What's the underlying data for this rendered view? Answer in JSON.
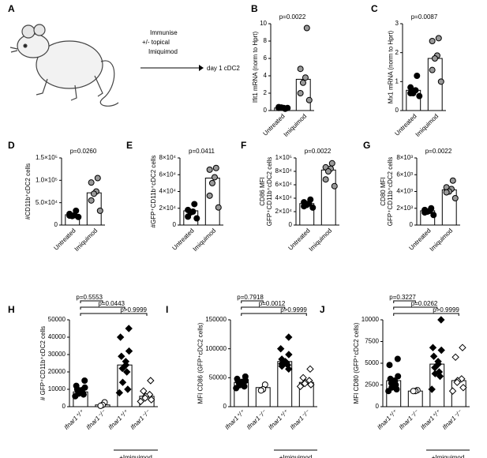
{
  "panel_a": {
    "label": "A",
    "text_lines": [
      "Immunise",
      "+/-  topical",
      "Imiquimod"
    ],
    "result": "day 1 cDC2"
  },
  "chart_data": [
    {
      "type": "bar",
      "panel": "B",
      "p_value": "p=0.0022",
      "ylabel": [
        "Ifit1 mRNA (norm to Hprt)"
      ],
      "categories": [
        "Untreated",
        "Imiquimod"
      ],
      "values": [
        0.3,
        3.6
      ],
      "points": [
        [
          0.2,
          0.3,
          0.3,
          0.35,
          0.4,
          0.3
        ],
        [
          9.5,
          4.8,
          3.8,
          3.2,
          2.0,
          1.2
        ]
      ],
      "point_fills": [
        "#000000",
        "#999999"
      ],
      "point_shapes": [
        "circle",
        "circle"
      ],
      "ylim": [
        0,
        10
      ],
      "yticks": [
        0,
        2,
        4,
        6,
        8,
        10
      ]
    },
    {
      "type": "bar",
      "panel": "C",
      "p_value": "p=0.0087",
      "ylabel": [
        "Mx1 mRNA (norm to Hprt)"
      ],
      "categories": [
        "Untreated",
        "Imiquimod"
      ],
      "values": [
        0.7,
        1.8
      ],
      "points": [
        [
          1.2,
          0.8,
          0.7,
          0.6,
          0.6,
          0.5
        ],
        [
          2.5,
          2.4,
          1.9,
          1.8,
          1.4,
          1.0
        ]
      ],
      "point_fills": [
        "#000000",
        "#999999"
      ],
      "point_shapes": [
        "circle",
        "circle"
      ],
      "ylim": [
        0,
        3
      ],
      "yticks": [
        0,
        1,
        2,
        3
      ]
    },
    {
      "type": "bar",
      "panel": "D",
      "p_value": "p=0.0260",
      "ylabel": [
        "#CD11b⁺cDC2 cells"
      ],
      "categories": [
        "Untreated",
        "Imiquimod"
      ],
      "values": [
        23000,
        72000
      ],
      "points": [
        [
          32000,
          25000,
          22000,
          20000,
          21000,
          18000
        ],
        [
          105000,
          95000,
          75000,
          70000,
          55000,
          32000
        ]
      ],
      "point_fills": [
        "#000000",
        "#999999"
      ],
      "point_shapes": [
        "circle",
        "circle"
      ],
      "ylim": [
        0,
        150000
      ],
      "yticks": [
        0,
        {
          "value": 50000,
          "label": "5.0×10⁴"
        },
        {
          "value": 100000,
          "label": "1.0×10⁵"
        },
        {
          "value": 150000,
          "label": "1.5×10⁵"
        }
      ]
    },
    {
      "type": "bar",
      "panel": "E",
      "p_value": "p=0.0411",
      "ylabel": [
        "#GFP⁺CD11b⁺cDC2 cells"
      ],
      "categories": [
        "Untreated",
        "Imiquimod"
      ],
      "values": [
        17000,
        56000
      ],
      "points": [
        [
          25000,
          18000,
          16000,
          15000,
          10000,
          8000
        ],
        [
          68000,
          66000,
          57000,
          50000,
          35000,
          21000
        ]
      ],
      "point_fills": [
        "#000000",
        "#999999"
      ],
      "point_shapes": [
        "circle",
        "circle"
      ],
      "ylim": [
        0,
        80000
      ],
      "yticks": [
        0,
        {
          "value": 20000,
          "label": "2×10⁴"
        },
        {
          "value": 40000,
          "label": "4×10⁴"
        },
        {
          "value": 60000,
          "label": "6×10⁴"
        },
        {
          "value": 80000,
          "label": "8×10⁴"
        }
      ]
    },
    {
      "type": "bar",
      "panel": "F",
      "p_value": "p=0.0022",
      "ylabel": [
        "CD86 MFI",
        "GFP⁺CD11b⁺cDC2 cells"
      ],
      "categories": [
        "Untreated",
        "Imiquimod"
      ],
      "values": [
        32000,
        82000
      ],
      "points": [
        [
          38000,
          34000,
          32000,
          30000,
          28000,
          26000
        ],
        [
          92000,
          86000,
          84000,
          80000,
          68000,
          58000
        ]
      ],
      "point_fills": [
        "#000000",
        "#999999"
      ],
      "point_shapes": [
        "circle",
        "circle"
      ],
      "ylim": [
        0,
        100000
      ],
      "yticks": [
        0,
        {
          "value": 20000,
          "label": "2×10⁴"
        },
        {
          "value": 40000,
          "label": "4×10⁴"
        },
        {
          "value": 60000,
          "label": "6×10⁴"
        },
        {
          "value": 80000,
          "label": "8×10⁴"
        },
        {
          "value": 100000,
          "label": "1×10⁵"
        }
      ]
    },
    {
      "type": "bar",
      "panel": "G",
      "p_value": "p=0.0022",
      "ylabel": [
        "CD80 MFI",
        "GFP⁺CD11b⁺cDC2 cells"
      ],
      "categories": [
        "Untreated",
        "Imiquimod"
      ],
      "values": [
        1700,
        4200
      ],
      "points": [
        [
          2000,
          1800,
          1700,
          1600,
          1500,
          1200
        ],
        [
          5300,
          4500,
          4300,
          4000,
          3900,
          3200
        ]
      ],
      "point_fills": [
        "#000000",
        "#999999"
      ],
      "point_shapes": [
        "circle",
        "circle"
      ],
      "ylim": [
        0,
        8000
      ],
      "yticks": [
        0,
        {
          "value": 2000,
          "label": "2×10³"
        },
        {
          "value": 4000,
          "label": "4×10³"
        },
        {
          "value": 6000,
          "label": "6×10³"
        },
        {
          "value": 8000,
          "label": "8×10³"
        }
      ]
    },
    {
      "type": "bar",
      "panel": "H",
      "p_values": [
        "p=0.5553",
        "p=0.0443",
        "p>0.9999"
      ],
      "group_label": "+Imiquimod",
      "ylabel": [
        "# GFP⁺CD11b⁺cDC2 cells"
      ],
      "categories": [
        "Ifnar1⁺/⁺",
        "Ifnar1⁻/⁻",
        "Ifnar1⁺/⁺",
        "Ifnar1⁻/⁻"
      ],
      "values": [
        8500,
        1000,
        24000,
        6000
      ],
      "points": [
        [
          15000,
          12000,
          11000,
          10000,
          9500,
          9000,
          8500,
          8000,
          7500,
          7000,
          6000
        ],
        [
          2500,
          1000,
          500
        ],
        [
          45000,
          40000,
          32000,
          29000,
          26000,
          24000,
          22000,
          20000,
          14000,
          10000,
          8000
        ],
        [
          15000,
          9000,
          7000,
          6000,
          5000,
          4000,
          3000
        ]
      ],
      "point_fills": [
        "#000000",
        "#ffffff",
        "#000000",
        "#ffffff"
      ],
      "point_shapes": [
        "circle",
        "circle",
        "diamond",
        "diamond"
      ],
      "ylim": [
        0,
        50000
      ],
      "yticks": [
        0,
        10000,
        20000,
        30000,
        40000,
        50000
      ]
    },
    {
      "type": "bar",
      "panel": "I",
      "p_values": [
        "p=0.7918",
        "p=0.0012",
        "p>0.9999"
      ],
      "group_label": "+Imiquimod",
      "ylabel": [
        "MFI CD86 (GFP⁺cDC2 cells)"
      ],
      "categories": [
        "Ifnar1⁺/⁺",
        "Ifnar1⁻/⁻",
        "Ifnar1⁺/⁺",
        "Ifnar1⁻/⁻"
      ],
      "values": [
        42000,
        33000,
        78000,
        42000
      ],
      "points": [
        [
          52000,
          48000,
          45000,
          44000,
          43000,
          42000,
          40000,
          39000,
          37000,
          35000,
          32000
        ],
        [
          38000,
          30000,
          28000
        ],
        [
          120000,
          100000,
          90000,
          82000,
          78000,
          76000,
          74000,
          72000,
          70000,
          65000
        ],
        [
          65000,
          50000,
          45000,
          42000,
          40000,
          38000,
          35000
        ]
      ],
      "point_fills": [
        "#000000",
        "#ffffff",
        "#000000",
        "#ffffff"
      ],
      "point_shapes": [
        "circle",
        "circle",
        "diamond",
        "diamond"
      ],
      "ylim": [
        0,
        150000
      ],
      "yticks": [
        0,
        50000,
        100000,
        150000
      ]
    },
    {
      "type": "bar",
      "panel": "J",
      "p_values": [
        "p=0.3227",
        "p=0.0262",
        "p>0.9999"
      ],
      "group_label": "+Imiquimod",
      "ylabel": [
        "MFI CD80 (GFP⁺cDC2 cells)"
      ],
      "categories": [
        "Ifnar1⁺/⁺",
        "Ifnar1⁻/⁻",
        "Ifnar1⁺/⁺",
        "Ifnar1⁻/⁻"
      ],
      "values": [
        3000,
        1800,
        4900,
        3000
      ],
      "points": [
        [
          5500,
          4800,
          3500,
          3200,
          3000,
          2900,
          2700,
          2500,
          2200,
          2000,
          1800
        ],
        [
          1900,
          1800,
          1800
        ],
        [
          10000,
          6800,
          6500,
          5800,
          5200,
          4900,
          4500,
          4000,
          3800,
          3500,
          2000
        ],
        [
          6800,
          5700,
          3200,
          3000,
          2800,
          2200,
          1800
        ]
      ],
      "point_fills": [
        "#000000",
        "#ffffff",
        "#000000",
        "#ffffff"
      ],
      "point_shapes": [
        "circle",
        "circle",
        "diamond",
        "diamond"
      ],
      "ylim": [
        0,
        10000
      ],
      "yticks": [
        0,
        2500,
        5000,
        7500,
        10000
      ]
    }
  ]
}
